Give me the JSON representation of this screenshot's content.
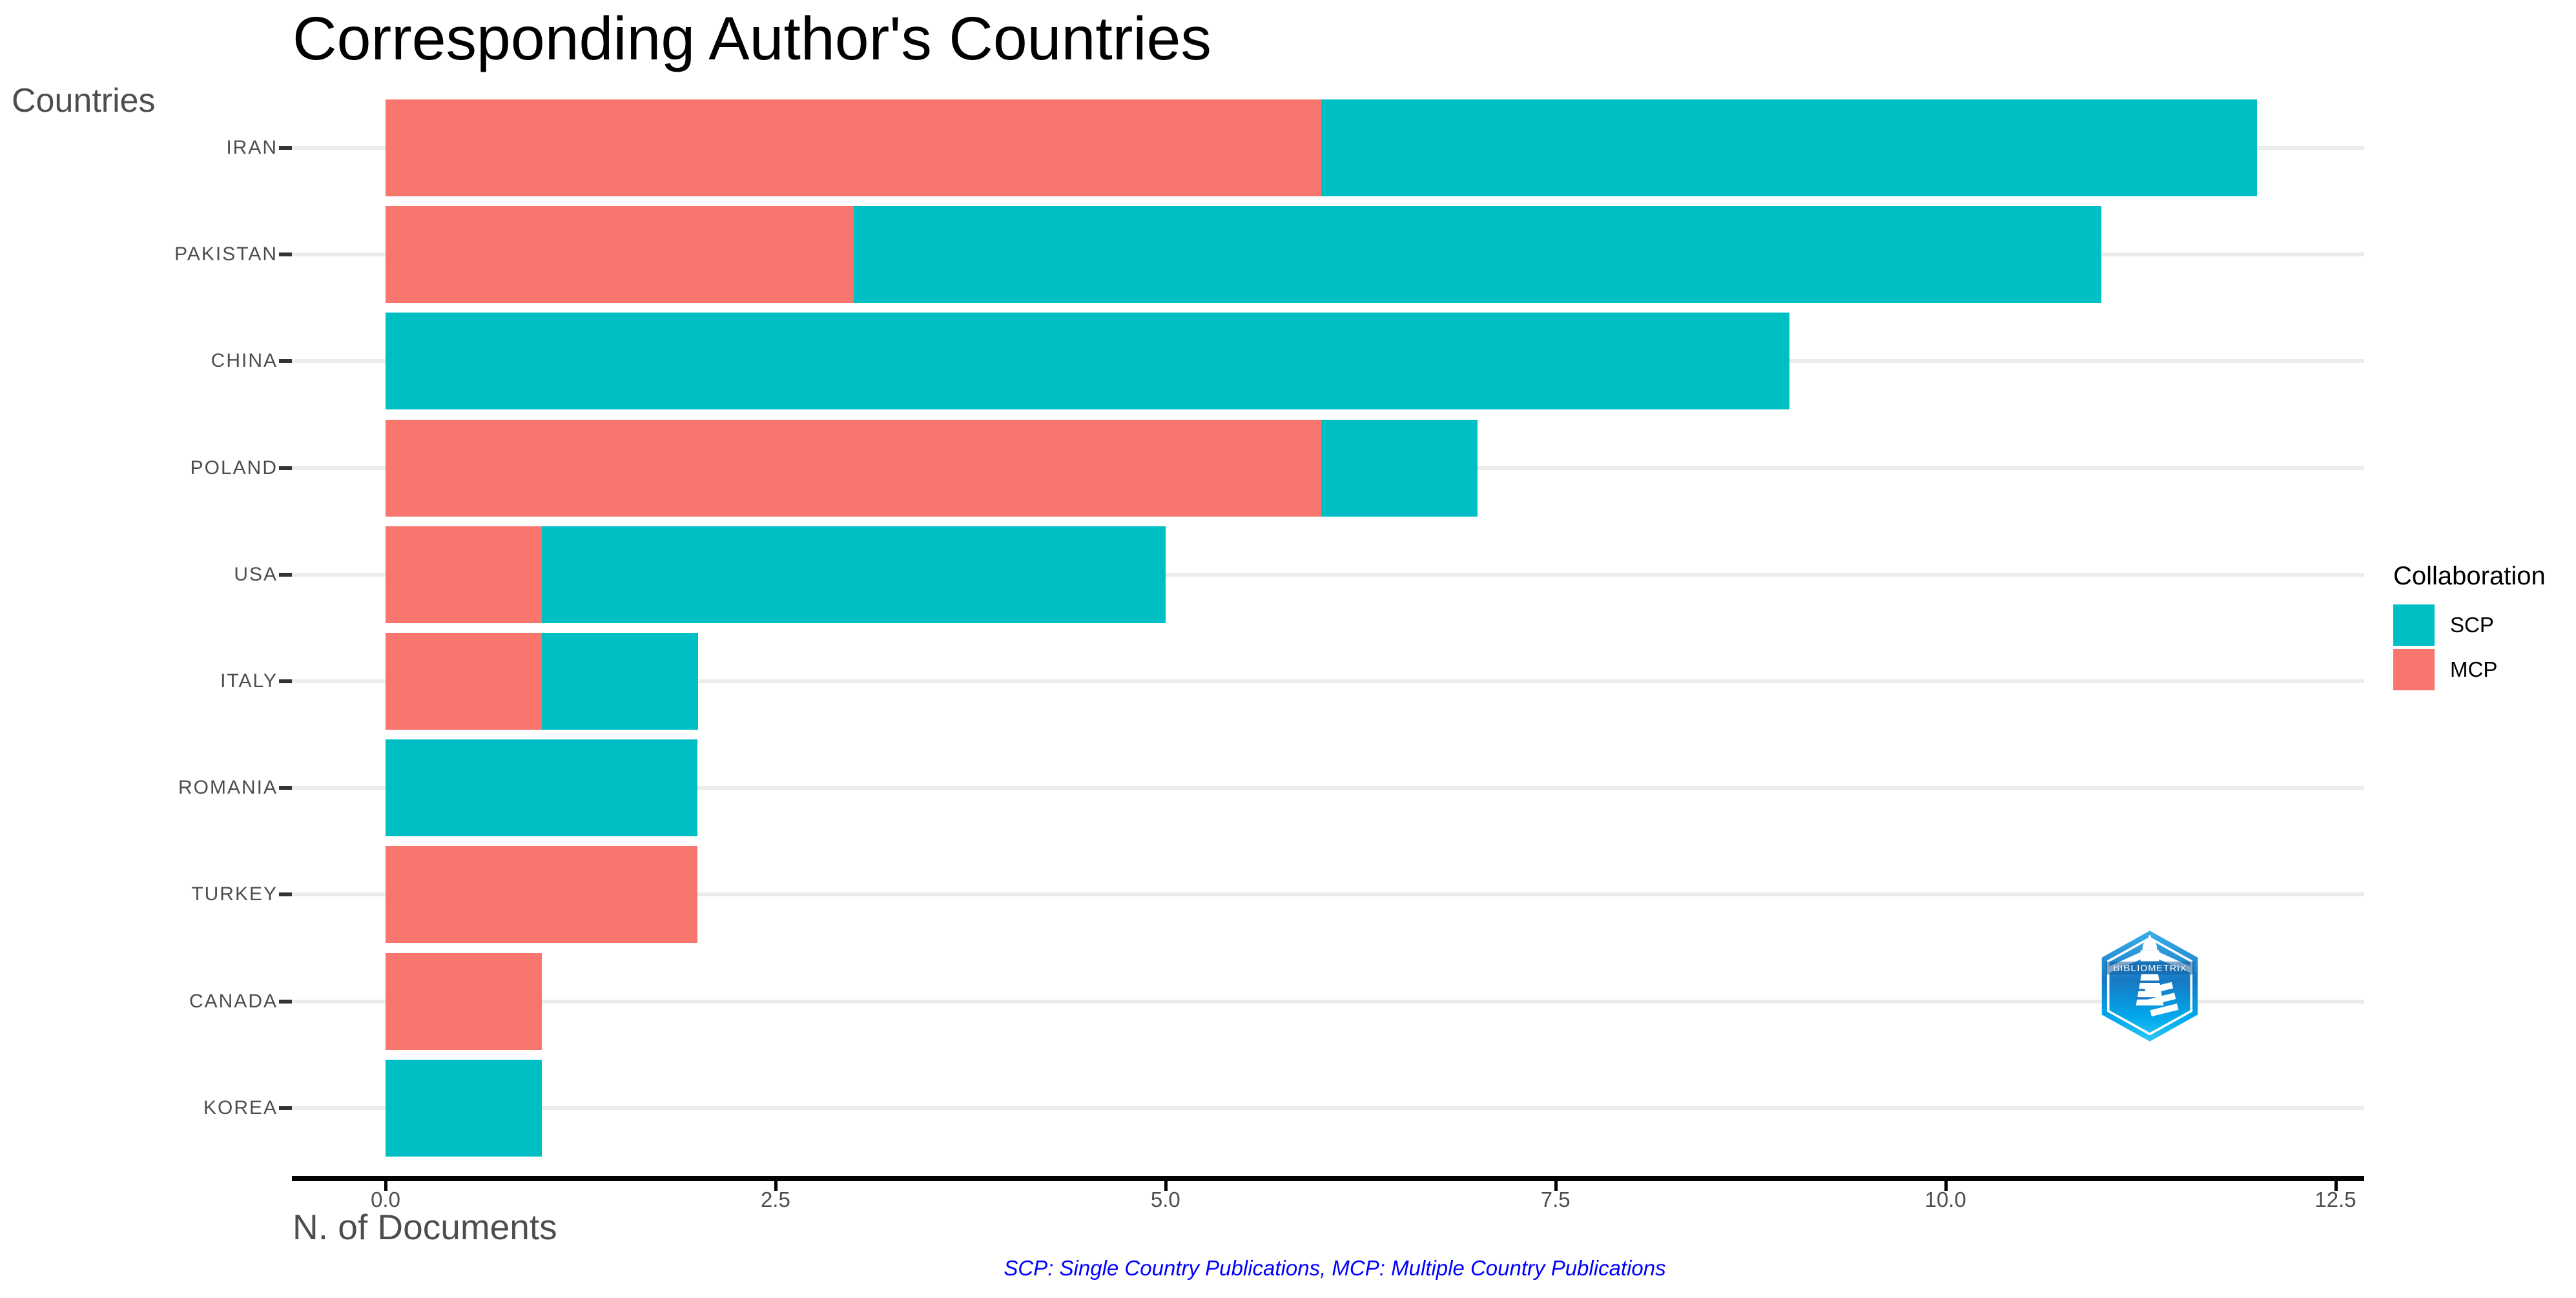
{
  "title": "Corresponding Author's Countries",
  "y_axis_title": "Countries",
  "x_axis_title": "N. of Documents",
  "caption": "SCP: Single Country Publications, MCP: Multiple Country Publications",
  "legend": {
    "title": "Collaboration",
    "items": [
      {
        "label": "SCP",
        "color": "#00BFC4"
      },
      {
        "label": "MCP",
        "color": "#F8766D"
      }
    ]
  },
  "colors": {
    "scp": "#00BFC4",
    "mcp": "#F8766D",
    "axis_text": "#4D4D4D",
    "tick_mark": "#333333",
    "grid": "#ECECEC",
    "axis_line": "#000000",
    "caption_blue": "#0000FF",
    "title_black": "#000000"
  },
  "logo": {
    "text": "BIBLIOMETRIX"
  },
  "chart_data": {
    "type": "bar",
    "orientation": "horizontal",
    "stacked": true,
    "title": "Corresponding Author's Countries",
    "xlabel": "N. of Documents",
    "ylabel": "Countries",
    "categories": [
      "IRAN",
      "PAKISTAN",
      "CHINA",
      "POLAND",
      "USA",
      "ITALY",
      "ROMANIA",
      "TURKEY",
      "CANADA",
      "KOREA"
    ],
    "series": [
      {
        "name": "MCP",
        "color": "#F8766D",
        "values": [
          6,
          3,
          0,
          6,
          1,
          1,
          0,
          2,
          1,
          0
        ]
      },
      {
        "name": "SCP",
        "color": "#00BFC4",
        "values": [
          6,
          8,
          9,
          1,
          4,
          1,
          2,
          0,
          0,
          1
        ]
      }
    ],
    "totals": [
      12,
      11,
      9,
      7,
      5,
      2,
      2,
      2,
      1,
      1
    ],
    "xlim": [
      0,
      12.5
    ],
    "x_ticks": [
      0,
      2.5,
      5,
      7.5,
      10,
      12.5
    ],
    "x_tick_labels": [
      "0.0",
      "2.5",
      "5.0",
      "7.5",
      "10.0",
      "12.5"
    ],
    "grid": "horizontal-major-only",
    "legend_position": "right"
  }
}
